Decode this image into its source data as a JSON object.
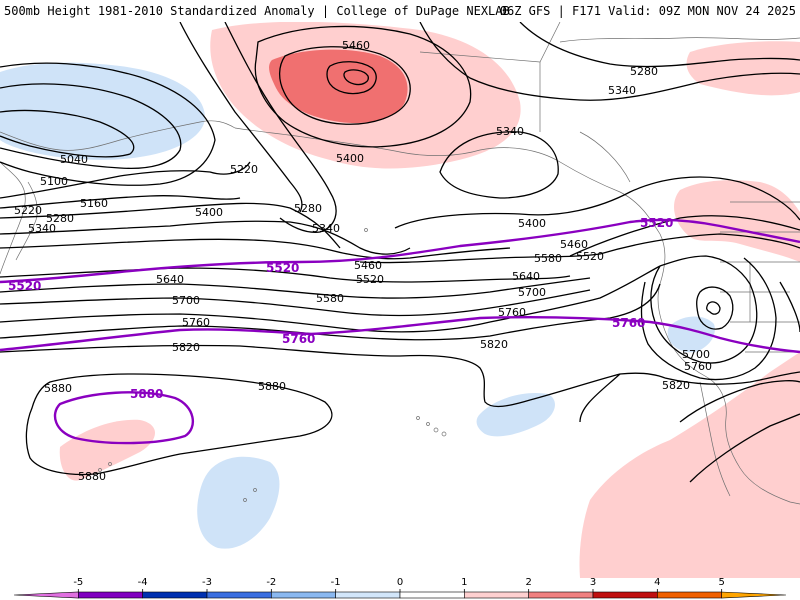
{
  "title_left": "500mb Height 1981-2010 Standardized Anomaly | College of DuPage NEXLAB",
  "title_right": "06Z GFS | F171 Valid: 09Z MON NOV 24 2025",
  "contour_labels": [
    {
      "text": "5460"
    },
    {
      "text": "5280"
    },
    {
      "text": "5340"
    },
    {
      "text": "5340"
    },
    {
      "text": "5400"
    },
    {
      "text": "5040"
    },
    {
      "text": "5100"
    },
    {
      "text": "5220"
    },
    {
      "text": "5160"
    },
    {
      "text": "5280"
    },
    {
      "text": "5220"
    },
    {
      "text": "5280"
    },
    {
      "text": "5340"
    },
    {
      "text": "5400"
    },
    {
      "text": "5340"
    },
    {
      "text": "5400"
    },
    {
      "text": "5460"
    },
    {
      "text": "5460"
    },
    {
      "text": "5520"
    },
    {
      "text": "5580"
    },
    {
      "text": "5520"
    },
    {
      "text": "5640"
    },
    {
      "text": "5580"
    },
    {
      "text": "5640"
    },
    {
      "text": "5700"
    },
    {
      "text": "5700"
    },
    {
      "text": "5760"
    },
    {
      "text": "5760"
    },
    {
      "text": "5820"
    },
    {
      "text": "5820"
    },
    {
      "text": "5880"
    },
    {
      "text": "5880"
    },
    {
      "text": "5880"
    },
    {
      "text": "5700"
    },
    {
      "text": "5760"
    },
    {
      "text": "5820"
    }
  ],
  "highlight_labels": [
    {
      "text": "5520"
    },
    {
      "text": "5520"
    },
    {
      "text": "5520"
    },
    {
      "text": "5760"
    },
    {
      "text": "5760"
    },
    {
      "text": "5880"
    }
  ],
  "colorbar": {
    "ticks": [
      "-5",
      "-4",
      "-3",
      "-2",
      "-1",
      "0",
      "1",
      "2",
      "3",
      "4",
      "5"
    ],
    "colors": [
      "#e070e0",
      "#8000c0",
      "#0030b0",
      "#3a6ee0",
      "#8ab8f0",
      "#d2e6fa",
      "#ffffff",
      "#ffd0d0",
      "#f08080",
      "#c01010",
      "#f06000",
      "#ffa500"
    ]
  },
  "anomaly_colors": {
    "strong_positive": "#f07070",
    "positive": "#ffcfcf",
    "negative": "#cfe3f8"
  },
  "highlight_color": "#8a00c0"
}
